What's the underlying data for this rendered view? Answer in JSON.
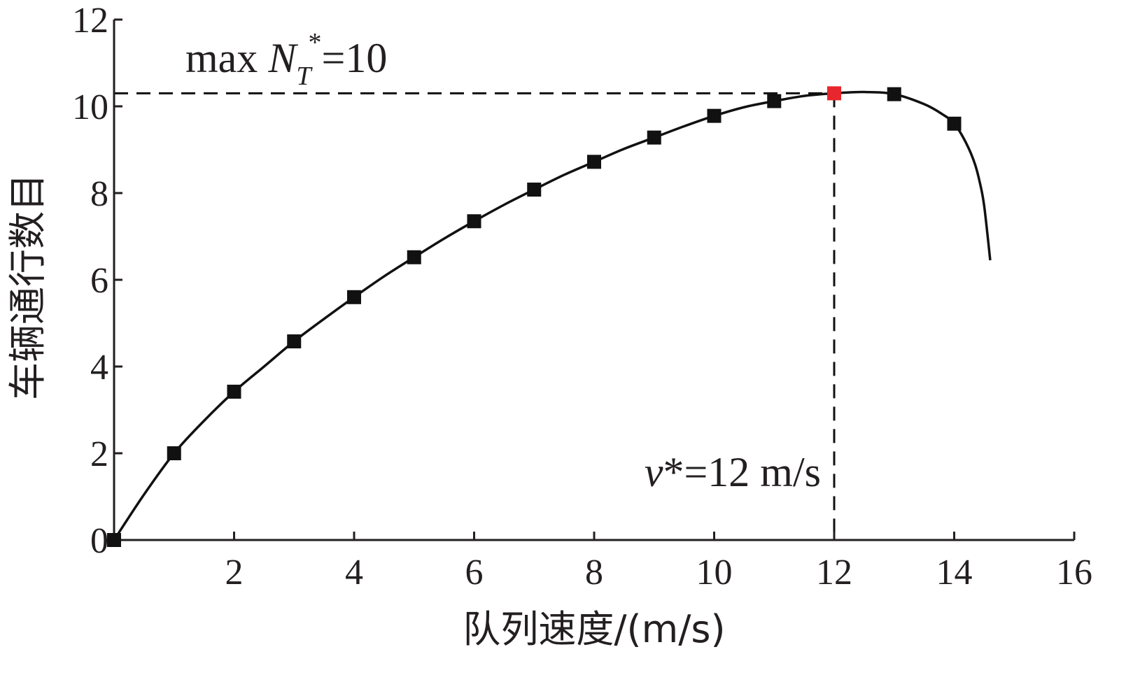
{
  "chart_data": {
    "type": "line",
    "xlabel": "队列速度/(m/s)",
    "ylabel": "车辆通行数目",
    "xlim": [
      0,
      16
    ],
    "ylim": [
      0,
      12
    ],
    "xticks": [
      {
        "value": 2,
        "label": "2"
      },
      {
        "value": 4,
        "label": "4"
      },
      {
        "value": 6,
        "label": "6"
      },
      {
        "value": 8,
        "label": "8"
      },
      {
        "value": 10,
        "label": "10"
      },
      {
        "value": 12,
        "label": "12"
      },
      {
        "value": 14,
        "label": "14"
      },
      {
        "value": 16,
        "label": "16"
      }
    ],
    "yticks": [
      {
        "value": 0,
        "label": "0"
      },
      {
        "value": 2,
        "label": "2"
      },
      {
        "value": 4,
        "label": "4"
      },
      {
        "value": 6,
        "label": "6"
      },
      {
        "value": 8,
        "label": "8"
      },
      {
        "value": 10,
        "label": "10"
      },
      {
        "value": 12,
        "label": "12"
      }
    ],
    "curve": {
      "x": [
        0,
        0.5,
        1,
        1.5,
        2,
        2.5,
        3,
        3.5,
        4,
        4.5,
        5,
        5.5,
        6,
        6.5,
        7,
        7.5,
        8,
        8.5,
        9,
        9.5,
        10,
        10.5,
        11,
        11.5,
        12,
        12.5,
        13,
        13.5,
        13.8,
        14,
        14.2,
        14.35,
        14.45,
        14.5,
        14.55,
        14.6
      ],
      "y": [
        0,
        1.05,
        2.0,
        2.75,
        3.42,
        4.0,
        4.58,
        5.1,
        5.6,
        6.08,
        6.52,
        6.95,
        7.35,
        7.73,
        8.08,
        8.42,
        8.72,
        9.02,
        9.28,
        9.54,
        9.78,
        9.98,
        10.12,
        10.24,
        10.3,
        10.33,
        10.28,
        10.05,
        9.82,
        9.6,
        9.15,
        8.65,
        8.1,
        7.7,
        7.1,
        6.45
      ]
    },
    "markers": {
      "x": [
        0,
        1,
        2,
        3,
        4,
        5,
        6,
        7,
        8,
        9,
        10,
        11,
        13,
        14
      ],
      "y": [
        0,
        2.0,
        3.42,
        4.58,
        5.6,
        6.52,
        7.35,
        8.08,
        8.72,
        9.28,
        9.78,
        10.12,
        10.28,
        9.6
      ]
    },
    "optimum": {
      "x": 12,
      "y": 10.3
    },
    "colors": {
      "line": "#111111",
      "marker": "#111111",
      "optimum_marker": "#e8262e",
      "axis": "#231f20"
    },
    "annotations": {
      "max_prefix": "max ",
      "max_symbol": "N",
      "max_subscript": "T",
      "max_superscript": "*",
      "max_suffix": "=10",
      "v_symbol": "v",
      "v_suffix": "*=12 m/s"
    }
  }
}
